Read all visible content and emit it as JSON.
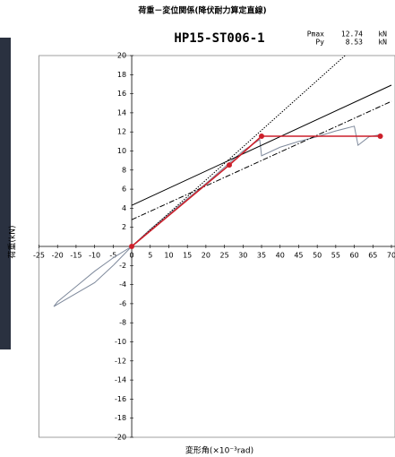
{
  "chart_data": {
    "type": "line",
    "title": "荷重－変位関係(降伏耐力算定直線)",
    "subtitle": "HP15-ST006-1",
    "stats": [
      {
        "label": "Pmax",
        "value": 12.74,
        "unit": "kN"
      },
      {
        "label": "Py",
        "value": 8.53,
        "unit": "kN"
      }
    ],
    "xlabel": "変形角(×10⁻³rad)",
    "ylabel": "荷重(kN)",
    "xlim": [
      -25,
      70
    ],
    "ylim": [
      -20,
      20
    ],
    "xticks": [
      -25,
      -20,
      -15,
      -10,
      -5,
      0,
      5,
      10,
      15,
      20,
      25,
      30,
      35,
      40,
      45,
      50,
      55,
      60,
      65,
      70
    ],
    "yticks": [
      -20,
      -18,
      -16,
      -14,
      -12,
      -10,
      -8,
      -6,
      -4,
      -2,
      0,
      2,
      4,
      6,
      8,
      10,
      12,
      14,
      16,
      18,
      20
    ],
    "series": [
      {
        "color": "#7f8a9c",
        "style": "solid",
        "x": [
          0,
          -5,
          -10,
          -15,
          -20,
          -21,
          -18,
          -10,
          -5,
          0,
          5,
          10,
          15,
          20,
          25,
          30,
          34.5,
          35,
          40,
          45,
          50,
          55,
          60,
          61,
          64,
          67
        ],
        "values": [
          0,
          -1.2,
          -2.6,
          -4.2,
          -5.8,
          -6.3,
          -5.6,
          -3.8,
          -2,
          0,
          1.8,
          3.4,
          5,
          6.6,
          8.3,
          10,
          11.2,
          9.5,
          10.4,
          11,
          11.5,
          12.1,
          12.6,
          10.6,
          11.5,
          11.7
        ]
      },
      {
        "color": "#000000",
        "style": "dotted",
        "x": [
          0,
          57.5
        ],
        "values": [
          0,
          20
        ]
      },
      {
        "color": "#000000",
        "style": "solid",
        "x": [
          0,
          70
        ],
        "values": [
          4.3,
          16.9
        ]
      },
      {
        "color": "#000000",
        "style": "dashdot",
        "x": [
          0,
          70
        ],
        "values": [
          2.8,
          15.2
        ]
      },
      {
        "color": "#cc1f2a",
        "style": "solid",
        "markers": true,
        "x": [
          0,
          26.3,
          35,
          67
        ],
        "values": [
          0,
          8.53,
          11.55,
          11.55
        ]
      }
    ]
  }
}
